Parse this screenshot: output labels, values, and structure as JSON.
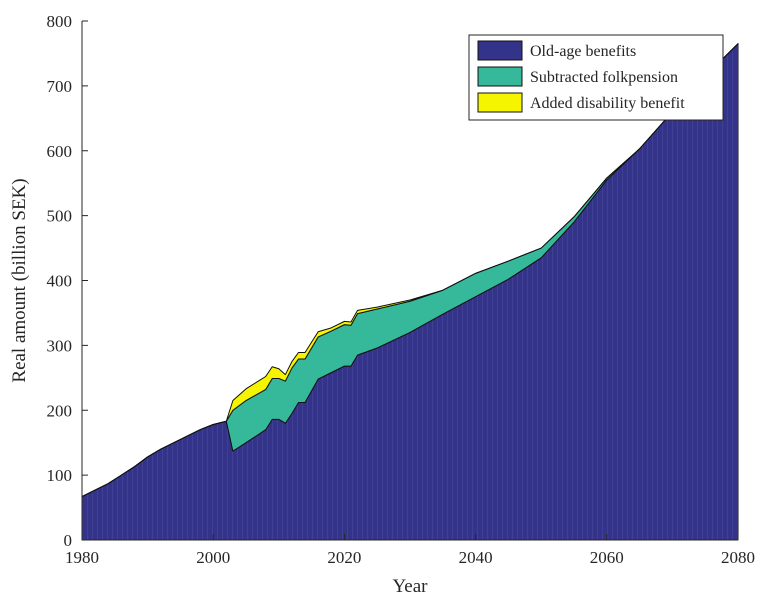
{
  "chart_data": {
    "type": "area",
    "stacked": true,
    "title": "",
    "xlabel": "Year",
    "ylabel": "Real amount (billion SEK)",
    "xlim": [
      1980,
      2080
    ],
    "ylim": [
      0,
      800
    ],
    "x_ticks": [
      1980,
      2000,
      2020,
      2040,
      2060,
      2080
    ],
    "y_ticks": [
      0,
      100,
      200,
      300,
      400,
      500,
      600,
      700,
      800
    ],
    "grid": false,
    "legend_position": "top-right",
    "x": [
      1980,
      1982,
      1984,
      1986,
      1988,
      1990,
      1992,
      1994,
      1996,
      1998,
      2000,
      2002,
      2003,
      2005,
      2008,
      2009,
      2010,
      2011,
      2012,
      2013,
      2014,
      2016,
      2018,
      2020,
      2021,
      2022,
      2025,
      2030,
      2035,
      2040,
      2045,
      2050,
      2055,
      2060,
      2065,
      2070,
      2075,
      2080
    ],
    "series": [
      {
        "name": "Old-age benefits",
        "color": "#34338a",
        "values": [
          67,
          77,
          87,
          100,
          113,
          128,
          140,
          150,
          160,
          170,
          178,
          183,
          137,
          150,
          170,
          186,
          186,
          180,
          195,
          212,
          212,
          248,
          258,
          268,
          268,
          285,
          296,
          320,
          348,
          375,
          402,
          435,
          490,
          555,
          603,
          660,
          715,
          765
        ]
      },
      {
        "name": "Subtracted folkpension",
        "color": "#36b89a",
        "values": [
          0,
          0,
          0,
          0,
          0,
          0,
          0,
          0,
          0,
          0,
          0,
          0,
          63,
          65,
          62,
          63,
          63,
          65,
          70,
          67,
          67,
          65,
          64,
          64,
          63,
          64,
          60,
          48,
          37,
          36,
          28,
          15,
          8,
          3,
          0,
          0,
          0,
          0
        ]
      },
      {
        "name": "Added disability benefit",
        "color": "#f5f500",
        "values": [
          0,
          0,
          0,
          0,
          0,
          0,
          0,
          0,
          0,
          0,
          0,
          0,
          15,
          18,
          20,
          18,
          15,
          10,
          10,
          10,
          10,
          8,
          5,
          5,
          5,
          5,
          3,
          2,
          0,
          0,
          0,
          0,
          0,
          0,
          0,
          0,
          0,
          0
        ]
      }
    ]
  }
}
